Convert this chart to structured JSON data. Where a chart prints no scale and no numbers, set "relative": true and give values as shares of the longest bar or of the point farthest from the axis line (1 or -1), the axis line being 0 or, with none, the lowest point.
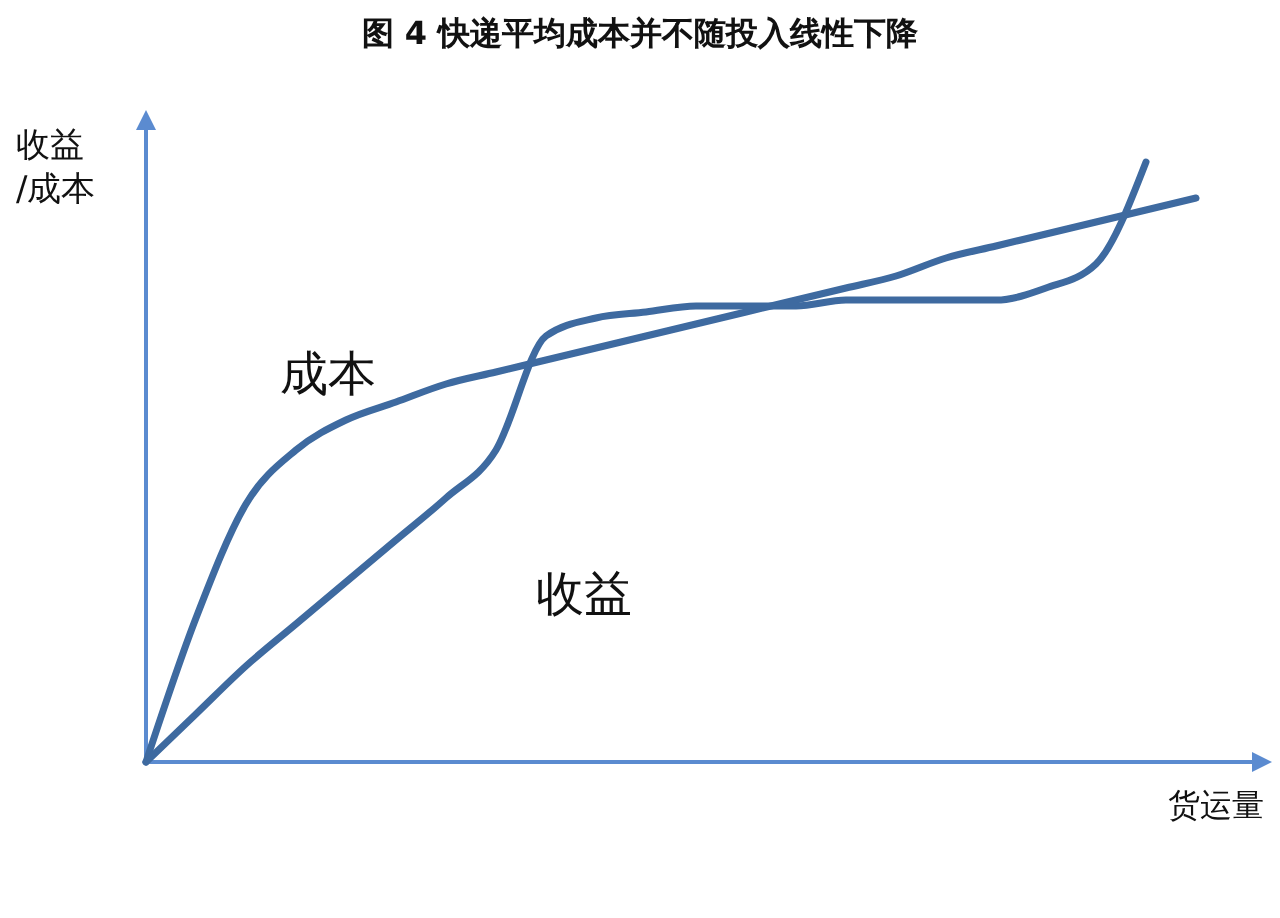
{
  "chart_data": {
    "type": "line",
    "title": "图 4  快递平均成本并不随投入线性下降",
    "xlabel": "货运量",
    "ylabel": "收益/成本",
    "relative": true,
    "marker": "none",
    "line_style": "solid",
    "categories": [
      null,
      null,
      null,
      null,
      null,
      null,
      null,
      null,
      null,
      null,
      null,
      null,
      null,
      null,
      null,
      null,
      null,
      null,
      null,
      null,
      null,
      null
    ],
    "series": [
      {
        "name": "成本",
        "color": "#3e6aa0",
        "values": [
          0,
          0.24,
          0.43,
          0.52,
          0.57,
          0.6,
          0.63,
          0.65,
          0.67,
          0.69,
          0.71,
          0.73,
          0.75,
          0.77,
          0.79,
          0.81,
          0.84,
          0.86,
          0.88,
          0.9,
          0.92,
          0.94
        ]
      },
      {
        "name": "收益",
        "color": "#3e6aa0",
        "values": [
          0,
          0.08,
          0.16,
          0.23,
          0.3,
          0.37,
          0.44,
          0.52,
          0.71,
          0.74,
          0.75,
          0.76,
          0.76,
          0.76,
          0.77,
          0.77,
          0.77,
          0.77,
          0.79,
          0.83,
          1,
          null
        ]
      }
    ]
  }
}
